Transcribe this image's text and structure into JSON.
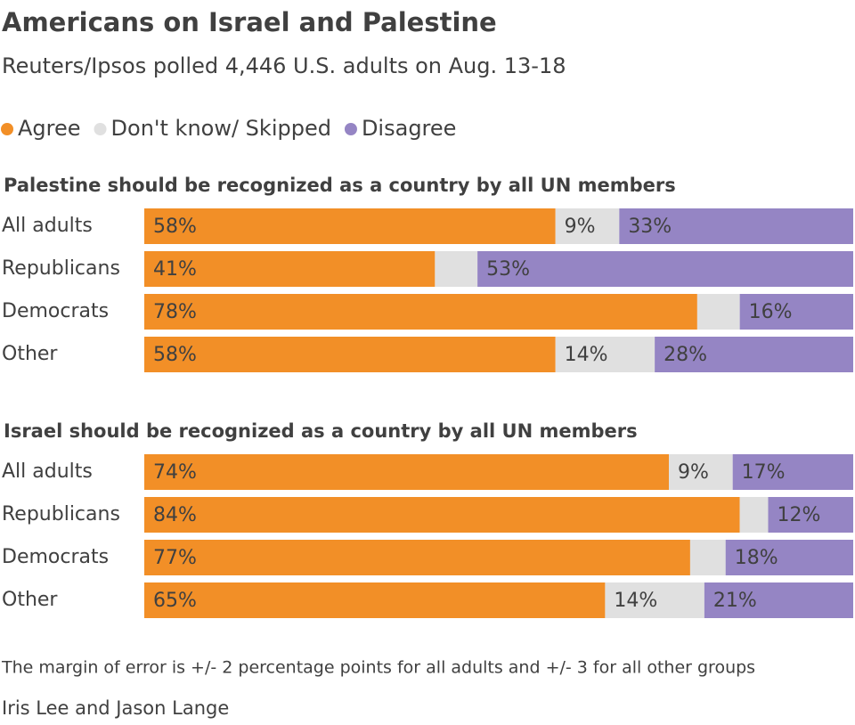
{
  "title": "Americans on Israel and Palestine",
  "subtitle": "Reuters/Ipsos polled 4,446 U.S. adults on Aug. 13-18",
  "series": [
    {
      "name": "Agree",
      "color": "#f28f27"
    },
    {
      "name": "Don't know/ Skipped",
      "color": "#e0e0e0"
    },
    {
      "name": "Disagree",
      "color": "#9585c4"
    }
  ],
  "chart_data": [
    {
      "type": "bar",
      "title": "Palestine should be recognized as a country by all UN members",
      "categories": [
        "All adults",
        "Republicans",
        "Democrats",
        "Other"
      ],
      "xlim": [
        0,
        100
      ],
      "series": [
        {
          "values": [
            58,
            41,
            78,
            58
          ],
          "value_labels": [
            "58%",
            "41%",
            "78%",
            "58%"
          ]
        },
        {
          "values": [
            9,
            6,
            6,
            14
          ],
          "value_labels": [
            "9%",
            null,
            null,
            "14%"
          ]
        },
        {
          "values": [
            33,
            53,
            16,
            28
          ],
          "value_labels": [
            "33%",
            "53%",
            "16%",
            "28%"
          ]
        }
      ]
    },
    {
      "type": "bar",
      "title": "Israel should be recognized as a country by all UN members",
      "categories": [
        "All adults",
        "Republicans",
        "Democrats",
        "Other"
      ],
      "xlim": [
        0,
        100
      ],
      "series": [
        {
          "values": [
            74,
            84,
            77,
            65
          ],
          "value_labels": [
            "74%",
            "84%",
            "77%",
            "65%"
          ]
        },
        {
          "values": [
            9,
            4,
            5,
            14
          ],
          "value_labels": [
            "9%",
            null,
            null,
            "14%"
          ]
        },
        {
          "values": [
            17,
            12,
            18,
            21
          ],
          "value_labels": [
            "17%",
            "12%",
            "18%",
            "21%"
          ]
        }
      ]
    }
  ],
  "note": "The margin of error is +/- 2 percentage points for all adults and +/- 3 for all other groups",
  "source": "Iris Lee and Jason Lange"
}
